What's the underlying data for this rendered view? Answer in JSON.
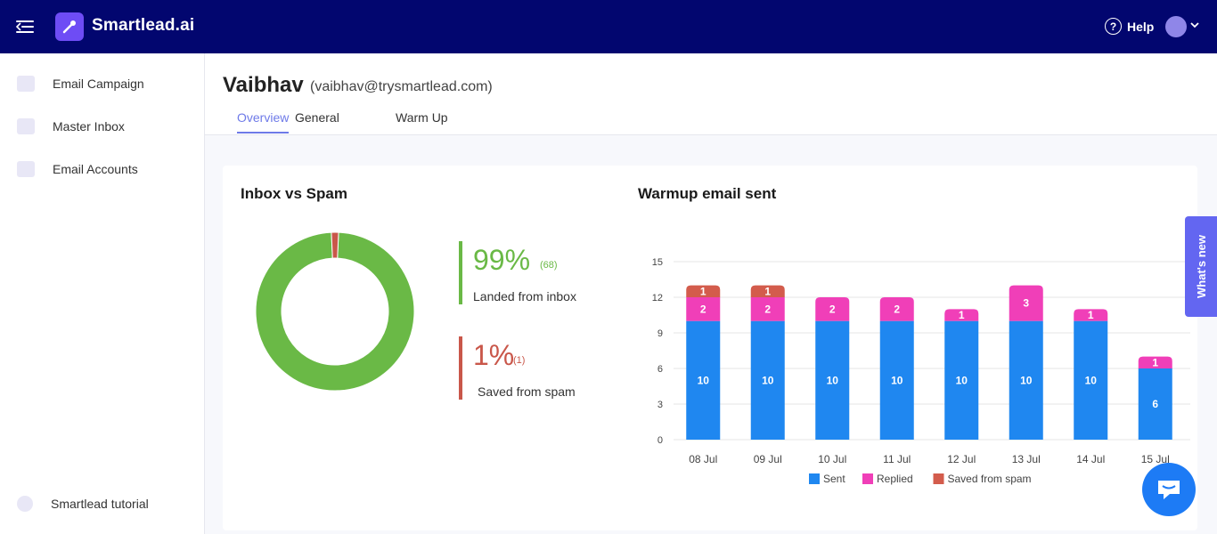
{
  "app": {
    "brand": "Smartlead.ai"
  },
  "topbar": {
    "help_label": "Help"
  },
  "sidebar": {
    "items": [
      {
        "label": "Email Campaign",
        "icon": "megaphone-icon"
      },
      {
        "label": "Master Inbox",
        "icon": "inbox-icon"
      },
      {
        "label": "Email Accounts",
        "icon": "accounts-icon"
      }
    ],
    "tutorial_label": "Smartlead tutorial"
  },
  "account": {
    "name": "Vaibhav",
    "email": "(vaibhav@trysmartlead.com)"
  },
  "tabs": [
    {
      "label": "Overview",
      "active": true
    },
    {
      "label": "General",
      "active": false
    },
    {
      "label": "Warm Up",
      "active": false
    }
  ],
  "inbox_vs_spam": {
    "title": "Inbox vs Spam",
    "inbox": {
      "percent": "99%",
      "count": "(68)",
      "label": "Landed from inbox",
      "color": "#6ab946"
    },
    "spam": {
      "percent": "1%",
      "count": "(1)",
      "label": "Saved from spam",
      "color": "#c9574a"
    },
    "donut_values": [
      68,
      1
    ]
  },
  "whats_new_label": "What's new",
  "chart_data": {
    "type": "bar",
    "stacked": true,
    "title": "Warmup email sent",
    "categories": [
      "08 Jul",
      "09 Jul",
      "10 Jul",
      "11 Jul",
      "12 Jul",
      "13 Jul",
      "14 Jul",
      "15 Jul"
    ],
    "series": [
      {
        "name": "Sent",
        "color": "#1f87f0",
        "values": [
          10,
          10,
          10,
          10,
          10,
          10,
          10,
          6
        ]
      },
      {
        "name": "Replied",
        "color": "#f03fb8",
        "values": [
          2,
          2,
          2,
          2,
          1,
          3,
          1,
          1
        ]
      },
      {
        "name": "Saved from spam",
        "color": "#d35c4c",
        "values": [
          1,
          1,
          0,
          0,
          0,
          0,
          0,
          0
        ]
      }
    ],
    "y_ticks": [
      "0",
      "3",
      "6",
      "9",
      "12",
      "15"
    ],
    "ylim": [
      0,
      15
    ],
    "grid": true,
    "legend": "bottom"
  }
}
